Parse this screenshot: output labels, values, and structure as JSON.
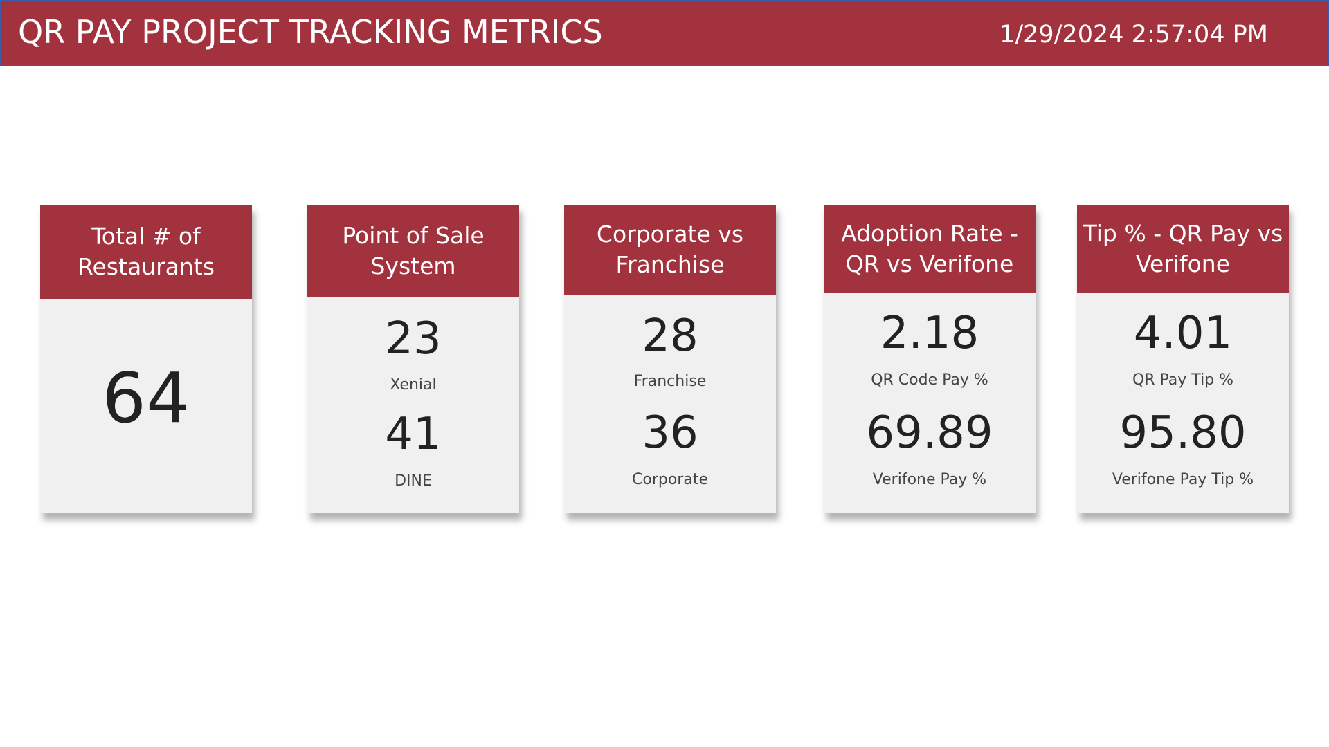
{
  "header": {
    "title": "QR PAY PROJECT TRACKING METRICS",
    "datetime": "1/29/2024 2:57:04 PM"
  },
  "colors": {
    "brand": "#a3323f",
    "card_bg": "#f0f0f0",
    "header_border": "#3e5aa8"
  },
  "cards": {
    "total": {
      "title_line1": "Total # of",
      "title_line2": "Restaurants",
      "value": "64"
    },
    "pos": {
      "title_line1": "Point of Sale",
      "title_line2": "System",
      "metrics": [
        {
          "value": "23",
          "label": "Xenial"
        },
        {
          "value": "41",
          "label": "DINE"
        }
      ]
    },
    "corp": {
      "title_line1": "Corporate vs",
      "title_line2": "Franchise",
      "metrics": [
        {
          "value": "28",
          "label": "Franchise"
        },
        {
          "value": "36",
          "label": "Corporate"
        }
      ]
    },
    "adoption": {
      "title_line1": "Adoption Rate -",
      "title_line2": "QR vs Verifone",
      "metrics": [
        {
          "value": "2.18",
          "label": "QR Code Pay %"
        },
        {
          "value": "69.89",
          "label": "Verifone Pay %"
        }
      ]
    },
    "tip": {
      "title_line1": "Tip % - QR Pay vs",
      "title_line2": "Verifone",
      "metrics": [
        {
          "value": "4.01",
          "label": "QR Pay Tip %"
        },
        {
          "value": "95.80",
          "label": "Verifone Pay Tip %"
        }
      ]
    }
  }
}
